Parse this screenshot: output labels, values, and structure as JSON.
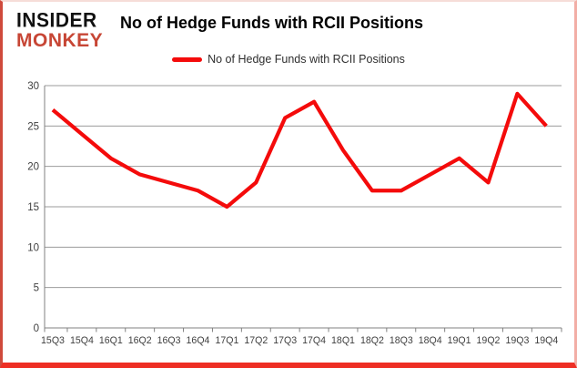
{
  "logo": {
    "line1": "INSIDER",
    "line2": "MONKEY"
  },
  "header": {
    "title": "No of Hedge Funds with RCII Positions"
  },
  "legend": {
    "label": "No of Hedge Funds with RCII Positions"
  },
  "colors": {
    "line": "#f40b0b",
    "grid": "#9b9b9b",
    "axis": "#808080",
    "tick_label": "#3f3f3f",
    "logo_black": "#111111",
    "logo_red": "#c74635",
    "border_red": "#ee2e24"
  },
  "chart_data": {
    "type": "line",
    "title": "No of Hedge Funds with RCII Positions",
    "categories": [
      "15Q3",
      "15Q4",
      "16Q1",
      "16Q2",
      "16Q3",
      "16Q4",
      "17Q1",
      "17Q2",
      "17Q3",
      "17Q4",
      "18Q1",
      "18Q2",
      "18Q3",
      "18Q4",
      "19Q1",
      "19Q2",
      "19Q3",
      "19Q4"
    ],
    "series": [
      {
        "name": "No of Hedge Funds with RCII Positions",
        "color": "#f40b0b",
        "values": [
          27,
          24,
          21,
          19,
          18,
          17,
          15,
          18,
          26,
          28,
          22,
          17,
          17,
          19,
          21,
          18,
          29,
          25
        ]
      }
    ],
    "xlabel": "",
    "ylabel": "",
    "ylim": [
      0,
      30
    ],
    "yticks": [
      0,
      5,
      10,
      15,
      20,
      25,
      30
    ],
    "grid": true,
    "legend_position": "top-center"
  }
}
